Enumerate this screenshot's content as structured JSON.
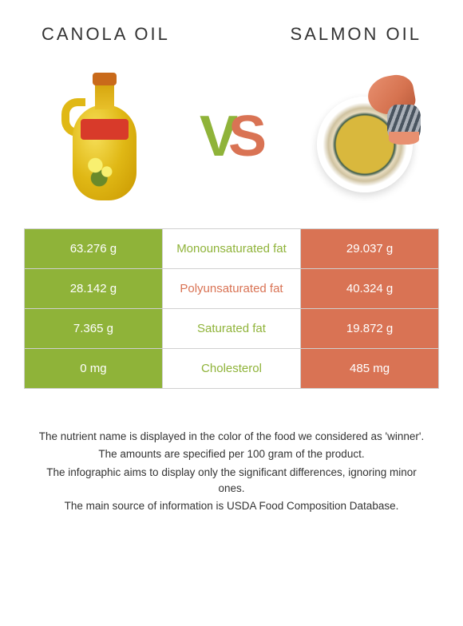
{
  "header": {
    "left_title": "CANOLA OIL",
    "right_title": "SALMON OIL"
  },
  "vs_text": {
    "v": "V",
    "s": "S"
  },
  "colors": {
    "canola": "#8fb339",
    "salmon": "#d97354",
    "canola_dark": "#7fa030",
    "salmon_dark": "#cc6548"
  },
  "table": {
    "rows": [
      {
        "left": "63.276 g",
        "mid": "Monounsaturated fat",
        "right": "29.037 g",
        "winner": "canola"
      },
      {
        "left": "28.142 g",
        "mid": "Polyunsaturated fat",
        "right": "40.324 g",
        "winner": "salmon"
      },
      {
        "left": "7.365 g",
        "mid": "Saturated fat",
        "right": "19.872 g",
        "winner": "canola"
      },
      {
        "left": "0 mg",
        "mid": "Cholesterol",
        "right": "485 mg",
        "winner": "canola"
      }
    ]
  },
  "footer": {
    "lines": [
      "The nutrient name is displayed in the color of the food we considered as 'winner'.",
      "The amounts are specified per 100 gram of the product.",
      "The infographic aims to display only the significant differences, ignoring minor ones.",
      "The main source of information is USDA Food Composition Database."
    ]
  }
}
